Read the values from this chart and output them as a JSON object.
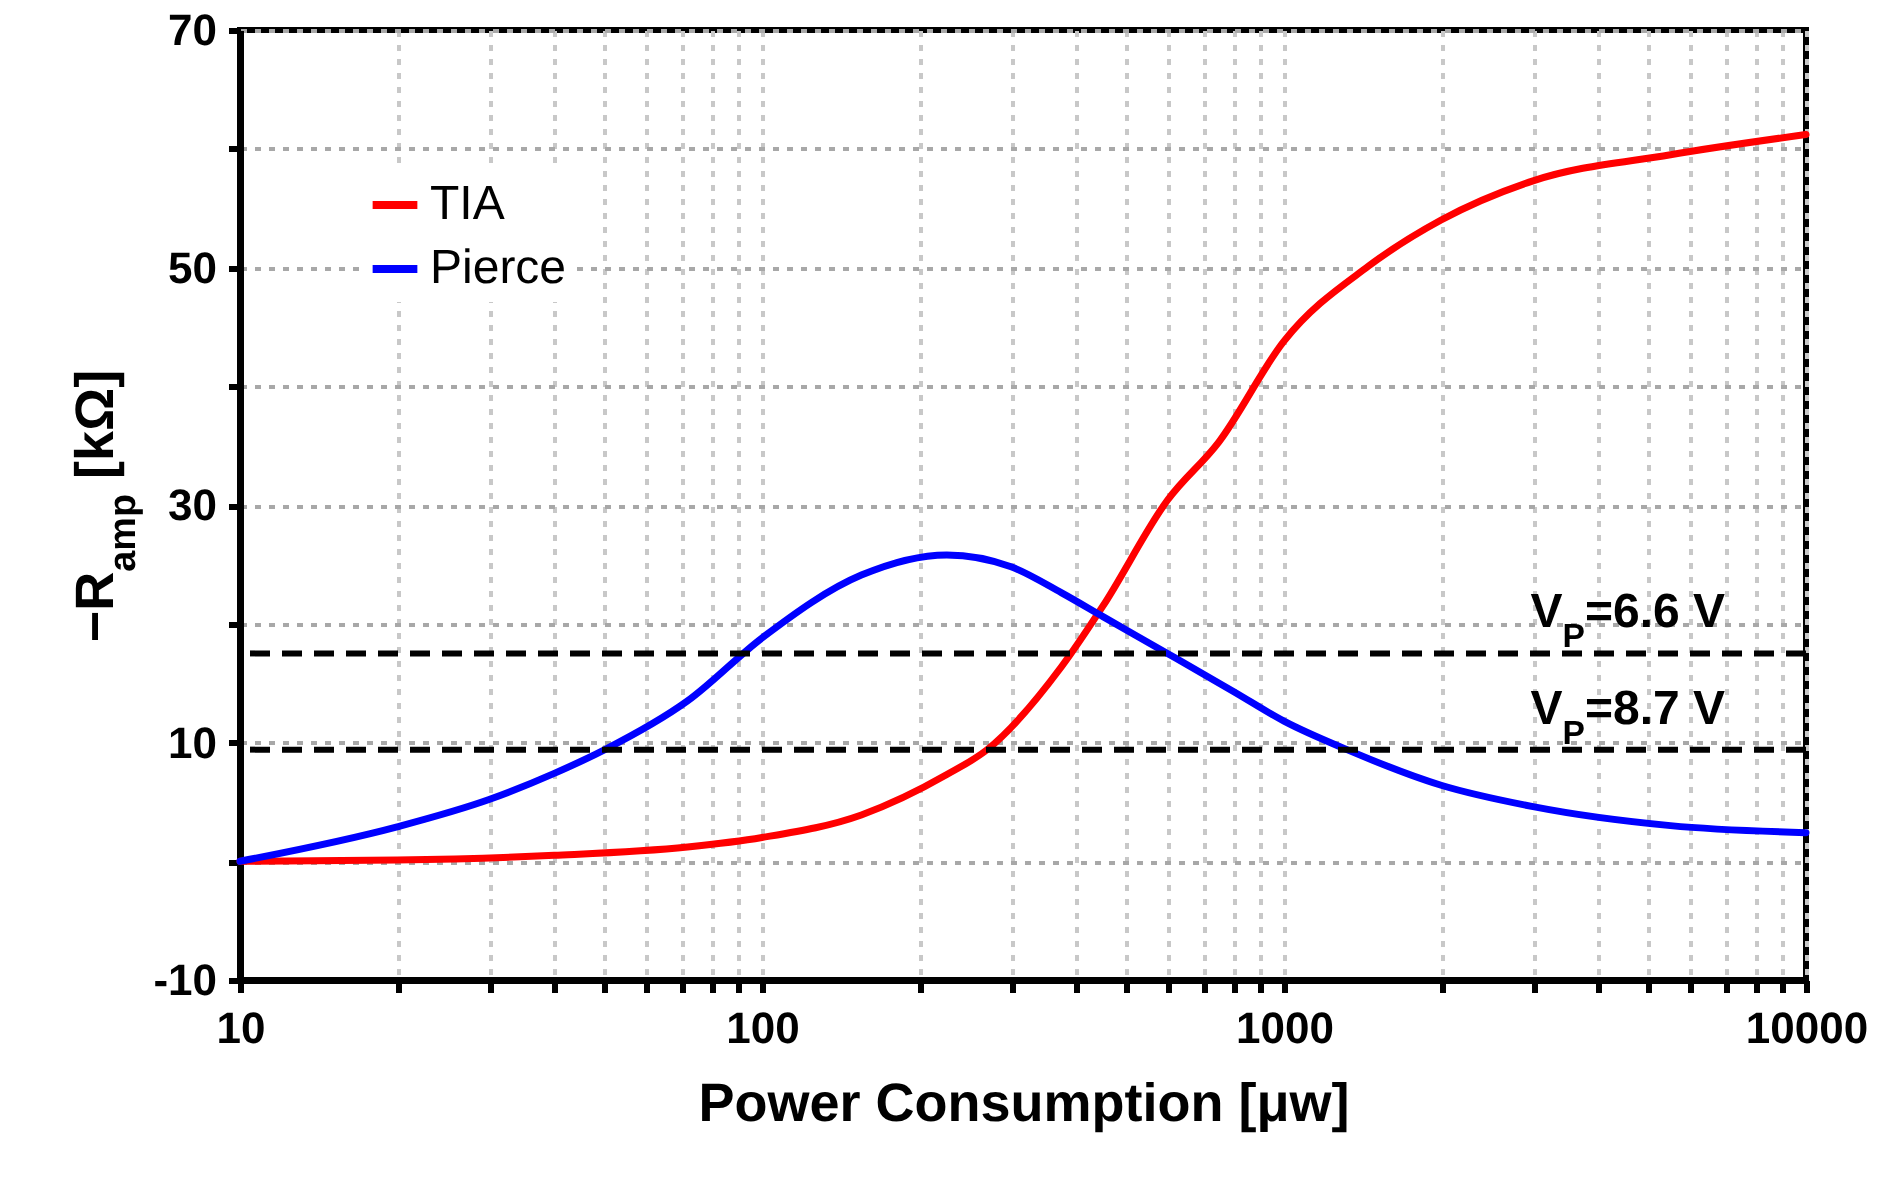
{
  "chart_data": {
    "type": "line",
    "xlabel": "Power Consumption [μw]",
    "ylabel": "−R$_{amp}$ [kΩ]",
    "series": [
      {
        "name": "TIA",
        "color": "#ff0000",
        "x": [
          10,
          20,
          40,
          72,
          100,
          155,
          226,
          270,
          375,
          450,
          598,
          750,
          1000,
          1450,
          2000,
          3000,
          5500,
          10000
        ],
        "values": [
          0,
          0.1,
          0.5,
          1.2,
          2.0,
          3.9,
          7.3,
          9.4,
          16.4,
          21.5,
          30.4,
          35.3,
          43.8,
          50.1,
          54,
          57.3,
          59.5,
          61.2
        ]
      },
      {
        "name": "Pierce",
        "color": "#0000ff",
        "x": [
          10,
          20,
          30,
          40,
          50,
          72,
          100,
          155,
          226,
          300,
          375,
          450,
          598,
          800,
          1000,
          1320,
          2000,
          3000,
          5500,
          10000
        ],
        "values": [
          0,
          2.9,
          5.2,
          7.4,
          9.4,
          13.5,
          18.8,
          24.1,
          25.8,
          24.8,
          22.6,
          20.6,
          17.5,
          14.3,
          11.8,
          9.4,
          6.4,
          4.6,
          3.0,
          2.4
        ]
      }
    ],
    "xlim": [
      10,
      10000
    ],
    "xticks": [
      10,
      {
        "value": 20,
        "label": null
      },
      {
        "value": 30,
        "label": null
      },
      {
        "value": 40,
        "label": null
      },
      {
        "value": 50,
        "label": null
      },
      {
        "value": 60,
        "label": null
      },
      {
        "value": 70,
        "label": null
      },
      {
        "value": 80,
        "label": null
      },
      {
        "value": 90,
        "label": null
      },
      100,
      {
        "value": 200,
        "label": null
      },
      {
        "value": 300,
        "label": null
      },
      {
        "value": 400,
        "label": null
      },
      {
        "value": 500,
        "label": null
      },
      {
        "value": 600,
        "label": null
      },
      {
        "value": 700,
        "label": null
      },
      {
        "value": 800,
        "label": null
      },
      {
        "value": 900,
        "label": null
      },
      1000,
      {
        "value": 2000,
        "label": null
      },
      {
        "value": 3000,
        "label": null
      },
      {
        "value": 4000,
        "label": null
      },
      {
        "value": 5000,
        "label": null
      },
      {
        "value": 6000,
        "label": null
      },
      {
        "value": 7000,
        "label": null
      },
      {
        "value": 8000,
        "label": null
      },
      {
        "value": 9000,
        "label": null
      },
      10000
    ],
    "ylim": [
      -10,
      70
    ],
    "yticks": [
      -10,
      {
        "value": 0,
        "label": null
      },
      10,
      {
        "value": 20,
        "label": null
      },
      30,
      {
        "value": 40,
        "label": null
      },
      50,
      {
        "value": 60,
        "label": null
      },
      70
    ],
    "log": "x",
    "grid": true,
    "legend": "top left",
    "ref_lines": [
      {
        "axis": "y",
        "value": 17.5,
        "color": "#000000",
        "line_style": "dashed"
      },
      {
        "axis": "y",
        "value": 9.4,
        "color": "#000000",
        "line_style": "dashed"
      }
    ],
    "annotations": [
      {
        "text": "V$_{P}$=6.6 V",
        "x": 7000,
        "y": 17.5
      },
      {
        "text": "V$_{P}$=8.7 V",
        "x": 7000,
        "y": 9.4
      }
    ]
  }
}
